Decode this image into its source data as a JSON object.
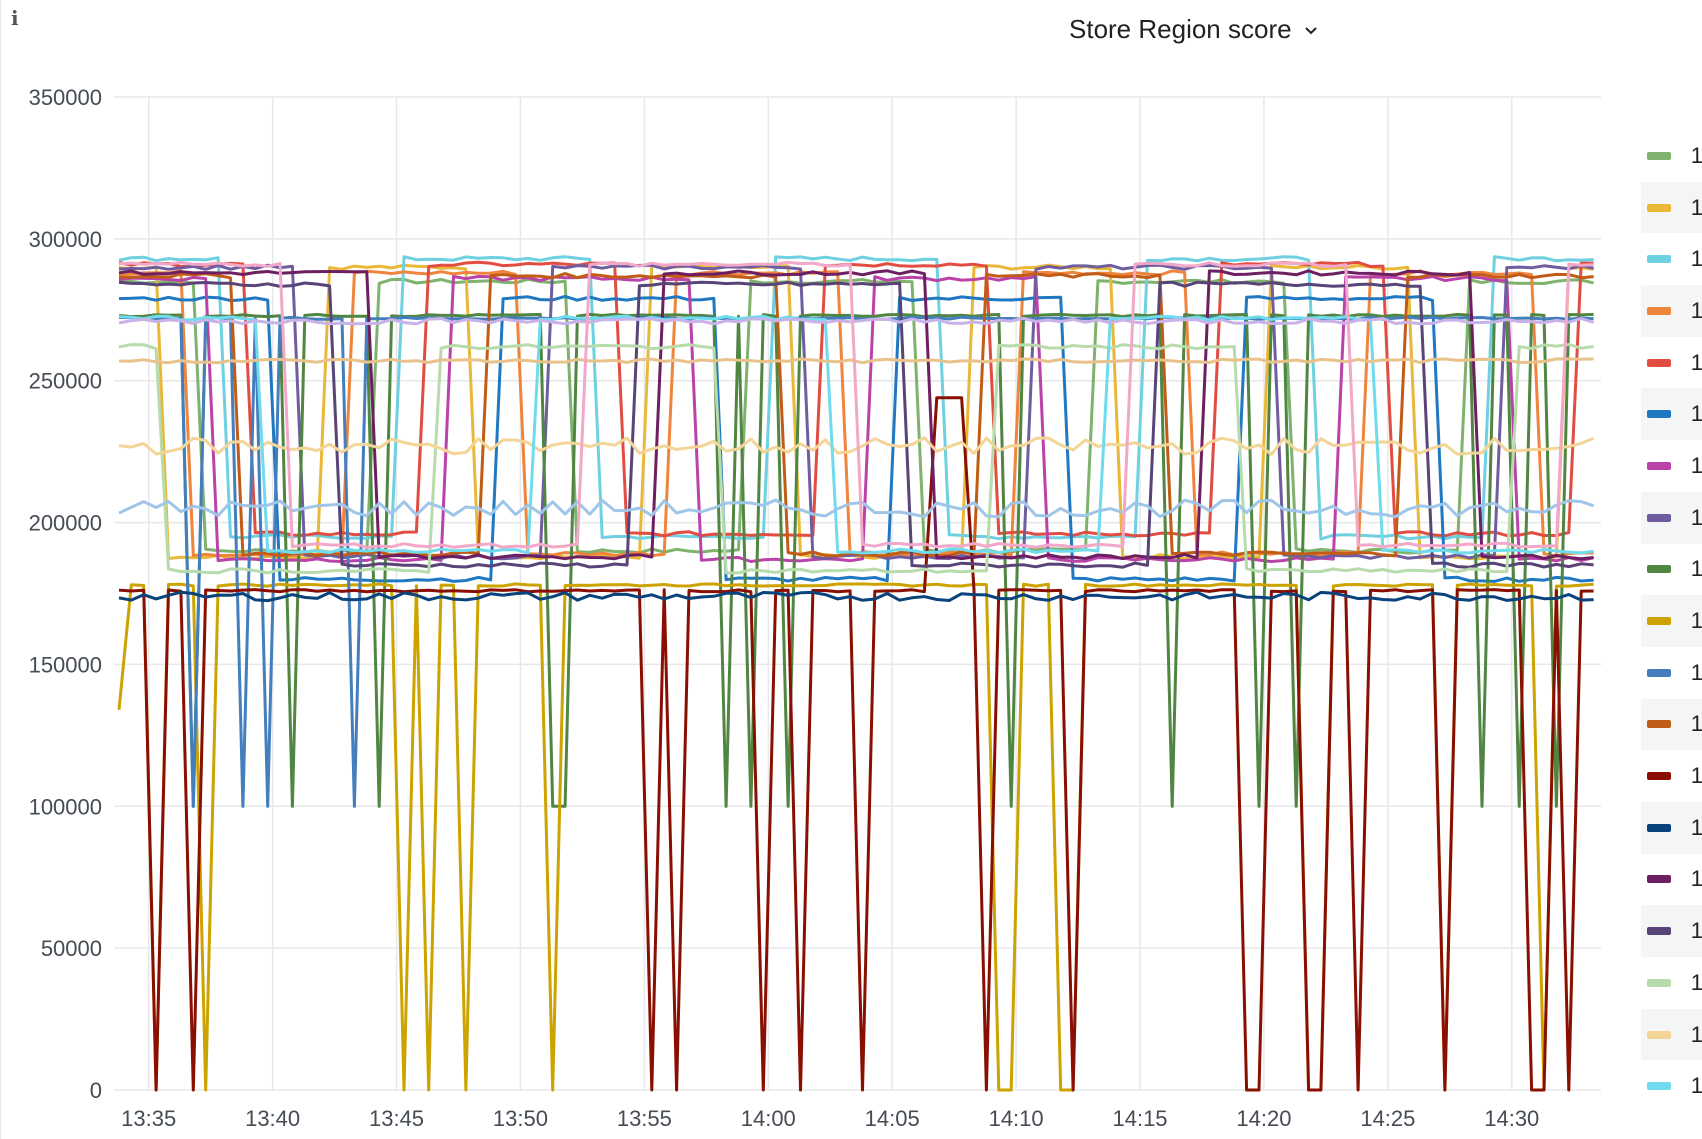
{
  "panel": {
    "title": "Store Region score",
    "info_icon": "info-icon",
    "title_chevron_icon": "chevron-down-icon"
  },
  "legend": {
    "items": [
      {
        "label": "1",
        "color": "#7eb26d"
      },
      {
        "label": "1",
        "color": "#eab839"
      },
      {
        "label": "1",
        "color": "#6ed0e0"
      },
      {
        "label": "1",
        "color": "#ef843c"
      },
      {
        "label": "1",
        "color": "#e24d42"
      },
      {
        "label": "1",
        "color": "#1f78c1"
      },
      {
        "label": "1",
        "color": "#ba43a9"
      },
      {
        "label": "1",
        "color": "#705da0"
      },
      {
        "label": "1",
        "color": "#508642"
      },
      {
        "label": "1",
        "color": "#cca300"
      },
      {
        "label": "1",
        "color": "#447ebc"
      },
      {
        "label": "1",
        "color": "#c15c17"
      },
      {
        "label": "1",
        "color": "#890f02"
      },
      {
        "label": "1",
        "color": "#0a437c"
      },
      {
        "label": "1",
        "color": "#6d1f62"
      },
      {
        "label": "1",
        "color": "#584477"
      },
      {
        "label": "1",
        "color": "#b7dbab"
      },
      {
        "label": "1",
        "color": "#f4d598"
      },
      {
        "label": "1",
        "color": "#70dbed"
      }
    ]
  },
  "chart_data": {
    "type": "line",
    "title": "Store Region score",
    "xlabel": "",
    "ylabel": "",
    "x_ticks": [
      "13:35",
      "13:40",
      "13:45",
      "13:50",
      "13:55",
      "14:00",
      "14:05",
      "14:10",
      "14:15",
      "14:20",
      "14:25",
      "14:30"
    ],
    "y_ticks": [
      "0",
      "50000",
      "100000",
      "150000",
      "200000",
      "250000",
      "300000",
      "350000"
    ],
    "ylim": [
      0,
      350000
    ],
    "xlim_minutes": [
      -1.4,
      58.6
    ],
    "grid": true,
    "legend_position": "right",
    "series": [
      {
        "color": "#7eb26d",
        "base": 285000,
        "low": 190000,
        "switches": [
          2,
          9,
          17,
          24,
          31,
          38,
          46,
          53
        ],
        "shape": "square"
      },
      {
        "color": "#eab839",
        "base": 290000,
        "low": 188000,
        "switches": [
          0.5,
          7,
          13,
          20,
          26,
          33,
          39,
          45,
          51,
          57
        ],
        "shape": "square"
      },
      {
        "color": "#6ed0e0",
        "base": 293000,
        "low": 195000,
        "switches": [
          3,
          10,
          18,
          25,
          32,
          40,
          47,
          54
        ],
        "shape": "square"
      },
      {
        "color": "#ef843c",
        "base": 288000,
        "low": 189000,
        "switches": [
          1.5,
          8,
          15,
          21,
          28,
          35,
          42,
          49,
          56
        ],
        "shape": "square"
      },
      {
        "color": "#e24d42",
        "base": 291000,
        "low": 196000,
        "switches": [
          4,
          11,
          19,
          27,
          34,
          43,
          50,
          57.5
        ],
        "shape": "square"
      },
      {
        "color": "#1f78c1",
        "base": 279000,
        "low": 180000,
        "switches": [
          5,
          14,
          23,
          30,
          37,
          44,
          52
        ],
        "shape": "square"
      },
      {
        "color": "#ba43a9",
        "base": 286000,
        "low": 187000,
        "switches": [
          2.5,
          12,
          22,
          29,
          36,
          48,
          55
        ],
        "shape": "square"
      },
      {
        "color": "#705da0",
        "base": 290000,
        "low": 188000,
        "switches": [
          6,
          16,
          26.5,
          35.5,
          45.5,
          54.5
        ],
        "shape": "square"
      },
      {
        "color": "#508642",
        "base": 273000,
        "low": 175000,
        "spikes": [
          1.8,
          6,
          9.5,
          16.5,
          16.8,
          23.5,
          24.4,
          26,
          35,
          41.5,
          45,
          46.5,
          54,
          55.5,
          56.8
        ],
        "spike_to": 100000
      },
      {
        "color": "#cca300",
        "base": 178000,
        "low": 178000,
        "spikes": [
          0.1,
          2.2,
          10.2,
          11.4,
          12.8,
          16.2,
          34.2,
          34.8,
          37.2,
          36.6,
          46.9,
          47.4,
          52.4,
          56.5
        ],
        "spike_to": 0,
        "start": 134000
      },
      {
        "color": "#447ebc",
        "base": 272000,
        "low": 200000,
        "spikes": [
          1.6,
          3.6,
          5.0,
          8.4
        ],
        "spike_to": 100000
      },
      {
        "color": "#c15c17",
        "base": 287000,
        "low": 189000,
        "switches": [
          3.5,
          13.5,
          25.5,
          33.5,
          41,
          50.5
        ],
        "shape": "square"
      },
      {
        "color": "#890f02",
        "base": 176000,
        "low": 176000,
        "spikes": [
          0.3,
          1.7,
          20.4,
          21.4,
          24.9,
          26.4,
          28.9,
          33.9,
          37.4,
          44.5,
          44.9,
          46.9,
          47.4,
          49.0,
          52.4,
          55.8,
          56.4,
          57.5
        ],
        "spike_to": 0,
        "bump": [
          32.4,
          244000
        ]
      },
      {
        "color": "#0a437c",
        "base": 174000,
        "low": 174000,
        "noise": 1500
      },
      {
        "color": "#6d1f62",
        "base": 288000,
        "low": 188000,
        "switches": [
          9,
          20.5,
          31.5,
          42.5,
          53.5
        ],
        "shape": "square"
      },
      {
        "color": "#584477",
        "base": 284000,
        "low": 185000,
        "switches": [
          7.5,
          19.5,
          30.5,
          40.5,
          51.5
        ],
        "shape": "square"
      },
      {
        "color": "#b7dbab",
        "base": 262000,
        "low": 183000,
        "switches": [
          0.8,
          11.5,
          23,
          34,
          44,
          55.2
        ],
        "shape": "square"
      },
      {
        "color": "#f4d598",
        "base": 227000,
        "low": 220000,
        "noise": 3000
      },
      {
        "color": "#70dbed",
        "base": 272000,
        "low": 190000,
        "switches": [
          4.5,
          15.5,
          27.5,
          38.5,
          49.5
        ],
        "shape": "square"
      },
      {
        "color": "#9fc5e8",
        "base": 205000,
        "low": 200000,
        "noise": 3000
      },
      {
        "color": "#c8b2e8",
        "base": 271000,
        "low": 268000,
        "noise": 1000
      },
      {
        "color": "#e8c28a",
        "base": 257000,
        "low": 255000,
        "noise": 700
      },
      {
        "color": "#f2a8c8",
        "base": 291000,
        "low": 192000,
        "switches": [
          5.5,
          17.5,
          28.5,
          39.5,
          48.5,
          57
        ],
        "shape": "square"
      }
    ]
  }
}
